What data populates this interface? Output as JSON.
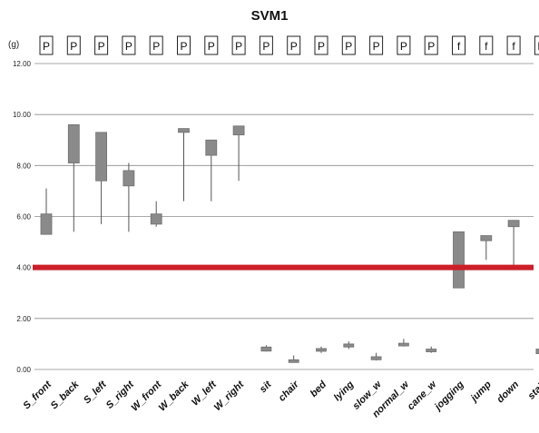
{
  "chart_data": {
    "type": "box",
    "title": "SVM1",
    "unit_label": "(g)",
    "ylim": [
      0,
      12
    ],
    "yticks": [
      "0.00",
      "2.00",
      "4.00",
      "6.00",
      "8.00",
      "10.00",
      "12.00"
    ],
    "grid": true,
    "categories": [
      "S_front",
      "S_back",
      "S_left",
      "S_right",
      "W_front",
      "W_back",
      "W_left",
      "W_right",
      "sit",
      "chair",
      "bed",
      "lying",
      "slow_w",
      "normal_w",
      "cane_w",
      "jogging",
      "jump",
      "down",
      "stair"
    ],
    "flags": [
      "P",
      "P",
      "P",
      "P",
      "P",
      "P",
      "P",
      "P",
      "P",
      "P",
      "P",
      "P",
      "P",
      "P",
      "P",
      "f",
      "f",
      "f",
      "P"
    ],
    "boxes": [
      {
        "min": 5.3,
        "q1": 5.3,
        "q3": 6.1,
        "max": 7.1
      },
      {
        "min": 5.4,
        "q1": 8.1,
        "q3": 9.6,
        "max": 9.6
      },
      {
        "min": 5.7,
        "q1": 7.4,
        "q3": 9.3,
        "max": 9.3
      },
      {
        "min": 5.4,
        "q1": 7.2,
        "q3": 7.8,
        "max": 8.1
      },
      {
        "min": 5.6,
        "q1": 5.7,
        "q3": 6.1,
        "max": 6.6
      },
      {
        "min": 6.6,
        "q1": 9.3,
        "q3": 9.45,
        "max": 9.45
      },
      {
        "min": 6.6,
        "q1": 8.4,
        "q3": 9.0,
        "max": 9.0
      },
      {
        "min": 7.4,
        "q1": 9.2,
        "q3": 9.55,
        "max": 9.55
      },
      {
        "min": 0.7,
        "q1": 0.72,
        "q3": 0.88,
        "max": 0.95
      },
      {
        "min": 0.3,
        "q1": 0.33,
        "q3": 0.38,
        "max": 0.55
      },
      {
        "min": 0.65,
        "q1": 0.75,
        "q3": 0.82,
        "max": 0.9
      },
      {
        "min": 0.8,
        "q1": 0.88,
        "q3": 1.0,
        "max": 1.1
      },
      {
        "min": 0.35,
        "q1": 0.38,
        "q3": 0.5,
        "max": 0.65
      },
      {
        "min": 0.9,
        "q1": 0.95,
        "q3": 1.03,
        "max": 1.2
      },
      {
        "min": 0.65,
        "q1": 0.74,
        "q3": 0.8,
        "max": 0.9
      },
      {
        "min": 3.2,
        "q1": 3.2,
        "q3": 5.4,
        "max": 5.4
      },
      {
        "min": 4.3,
        "q1": 5.05,
        "q3": 5.25,
        "max": 5.25
      },
      {
        "min": 4.0,
        "q1": 5.6,
        "q3": 5.85,
        "max": 5.85
      },
      {
        "min": 0.6,
        "q1": 0.62,
        "q3": 0.8,
        "max": 0.95
      }
    ],
    "threshold": {
      "value": 4.0,
      "color": "#cc1f28"
    },
    "colors": {
      "box_fill": "#8a8a8a",
      "box_stroke": "#6f6f6f",
      "whisker": "#555555",
      "grid": "#8c8c8c",
      "axis": "#333333"
    }
  }
}
